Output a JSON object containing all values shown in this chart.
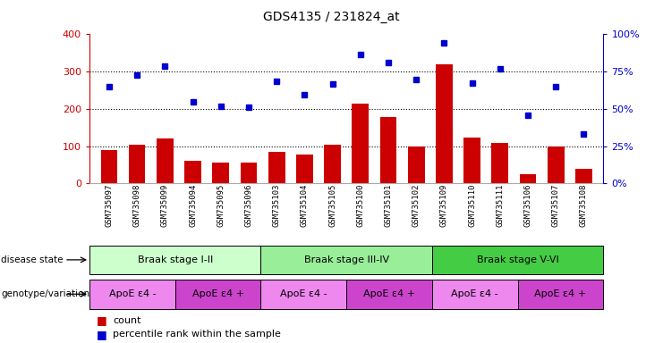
{
  "title": "GDS4135 / 231824_at",
  "samples": [
    "GSM735097",
    "GSM735098",
    "GSM735099",
    "GSM735094",
    "GSM735095",
    "GSM735096",
    "GSM735103",
    "GSM735104",
    "GSM735105",
    "GSM735100",
    "GSM735101",
    "GSM735102",
    "GSM735109",
    "GSM735110",
    "GSM735111",
    "GSM735106",
    "GSM735107",
    "GSM735108"
  ],
  "counts": [
    90,
    105,
    120,
    60,
    57,
    55,
    85,
    78,
    105,
    215,
    178,
    100,
    320,
    122,
    110,
    25,
    100,
    40
  ],
  "percentiles": [
    65,
    72.5,
    78.75,
    55,
    52,
    51.25,
    68.75,
    59.5,
    67,
    86.25,
    81.25,
    70,
    94.5,
    67.5,
    77,
    45.5,
    65,
    33
  ],
  "ylim_left": [
    0,
    400
  ],
  "ylim_right": [
    0,
    100
  ],
  "yticks_left": [
    0,
    100,
    200,
    300,
    400
  ],
  "yticks_right": [
    0,
    25,
    50,
    75,
    100
  ],
  "bar_color": "#cc0000",
  "dot_color": "#0000cc",
  "disease_state_groups": [
    {
      "label": "Braak stage I-II",
      "start": 0,
      "end": 6,
      "color": "#ccffcc"
    },
    {
      "label": "Braak stage III-IV",
      "start": 6,
      "end": 12,
      "color": "#99ee99"
    },
    {
      "label": "Braak stage V-VI",
      "start": 12,
      "end": 18,
      "color": "#44cc44"
    }
  ],
  "genotype_groups": [
    {
      "label": "ApoE ε4 -",
      "start": 0,
      "end": 3,
      "color": "#ee88ee"
    },
    {
      "label": "ApoE ε4 +",
      "start": 3,
      "end": 6,
      "color": "#cc44cc"
    },
    {
      "label": "ApoE ε4 -",
      "start": 6,
      "end": 9,
      "color": "#ee88ee"
    },
    {
      "label": "ApoE ε4 +",
      "start": 9,
      "end": 12,
      "color": "#cc44cc"
    },
    {
      "label": "ApoE ε4 -",
      "start": 12,
      "end": 15,
      "color": "#ee88ee"
    },
    {
      "label": "ApoE ε4 +",
      "start": 15,
      "end": 18,
      "color": "#cc44cc"
    }
  ],
  "disease_state_label": "disease state",
  "genotype_label": "genotype/variation",
  "legend_count_label": "count",
  "legend_pct_label": "percentile rank within the sample",
  "background_color": "#ffffff",
  "tick_color_left": "#cc0000",
  "tick_color_right": "#0000cc"
}
